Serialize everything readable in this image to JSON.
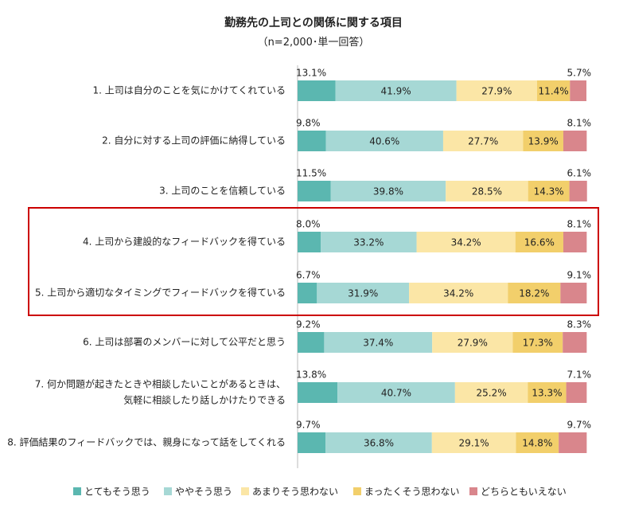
{
  "chart_data": {
    "type": "bar",
    "orientation": "horizontal",
    "stacked": "100%",
    "title": "勤務先の上司との関係に関する項目",
    "subtitle": "（n=2,000･単一回答）",
    "categories": [
      "1. 上司は自分のことを気にかけてくれている",
      "2. 自分に対する上司の評価に納得している",
      "3. 上司のことを信頼している",
      "4. 上司から建設的なフィードバックを得ている",
      "5. 上司から適切なタイミングでフィードバックを得ている",
      "6. 上司は部署のメンバーに対して公平だと思う",
      "7. 何か問題が起きたときや相談したいことがあるときは、\n気軽に相談したり話しかけたりできる",
      "8. 評価結果のフィードバックでは、親身になって話をしてくれる"
    ],
    "series": [
      {
        "name": "とてもそう思う",
        "color": "#5bb7b0",
        "values": [
          13.1,
          9.8,
          11.5,
          8.0,
          6.7,
          9.2,
          13.8,
          9.7
        ]
      },
      {
        "name": "ややそう思う",
        "color": "#a6d8d5",
        "values": [
          41.9,
          40.6,
          39.8,
          33.2,
          31.9,
          37.4,
          40.7,
          36.8
        ]
      },
      {
        "name": "あまりそう思わない",
        "color": "#fbe6a6",
        "values": [
          27.9,
          27.7,
          28.5,
          34.2,
          34.2,
          27.9,
          25.2,
          29.1
        ]
      },
      {
        "name": "まったくそう思わない",
        "color": "#f2cf6b",
        "values": [
          11.4,
          13.9,
          14.3,
          16.6,
          18.2,
          17.3,
          13.3,
          14.8
        ]
      },
      {
        "name": "どちらともいえない",
        "color": "#d9868c",
        "values": [
          5.7,
          8.1,
          6.1,
          8.1,
          9.1,
          8.3,
          7.1,
          9.7
        ]
      }
    ],
    "value_suffix": "%",
    "xlim": [
      0,
      100
    ],
    "legend_position": "bottom",
    "highlight": {
      "rows": [
        4,
        5
      ],
      "color": "#cc0000"
    }
  }
}
